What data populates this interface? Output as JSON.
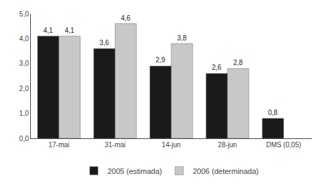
{
  "chart_data": {
    "type": "bar",
    "categories": [
      "17-mai",
      "31-mai",
      "14-jun",
      "28-jun",
      "DMS (0,05)"
    ],
    "series": [
      {
        "name": "2005 (estimada)",
        "color": "#1a1a1a",
        "values": [
          4.1,
          3.6,
          2.9,
          2.6,
          0.8
        ],
        "value_labels": [
          "4,1",
          "3,6",
          "2,9",
          "2,6",
          "0,8"
        ]
      },
      {
        "name": "2006 (determinada)",
        "color": "#c8c8c8",
        "values": [
          4.1,
          4.6,
          3.8,
          2.8,
          null
        ],
        "value_labels": [
          "4,1",
          "4,6",
          "3,8",
          "2,8",
          null
        ]
      }
    ],
    "ylim": [
      0,
      5.0
    ],
    "yticks": [
      {
        "value": 0.0,
        "label": "0,0"
      },
      {
        "value": 1.0,
        "label": "1,0"
      },
      {
        "value": 2.0,
        "label": "2,0"
      },
      {
        "value": 3.0,
        "label": "3,0"
      },
      {
        "value": 4.0,
        "label": "4,0"
      },
      {
        "value": 5.0,
        "label": "5,0"
      }
    ],
    "grid": false,
    "legend": "bottom",
    "data_labels": true
  }
}
